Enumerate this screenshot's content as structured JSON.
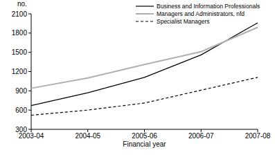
{
  "chart_data": {
    "type": "line",
    "x_label": "Financial year",
    "y_label": "no.",
    "categories": [
      "2003-04",
      "2004-05",
      "2005-06",
      "2006-07",
      "2007-08"
    ],
    "series": [
      {
        "name": "Business and Information Professionals",
        "color": "#000000",
        "line_style": "solid",
        "values": [
          670,
          870,
          1110,
          1460,
          1960
        ]
      },
      {
        "name": "Managers and Administrators, nfd",
        "color": "#b0b0b0",
        "line_style": "solid",
        "values": [
          940,
          1100,
          1310,
          1510,
          1890
        ]
      },
      {
        "name": "Specialist Managers",
        "color": "#000000",
        "line_style": "dashed",
        "values": [
          520,
          600,
          710,
          910,
          1110
        ]
      }
    ],
    "ylim": [
      300,
      2100
    ],
    "yticks": [
      300,
      600,
      900,
      1200,
      1500,
      1800,
      2100
    ],
    "grid": false,
    "legend": "top-right"
  }
}
